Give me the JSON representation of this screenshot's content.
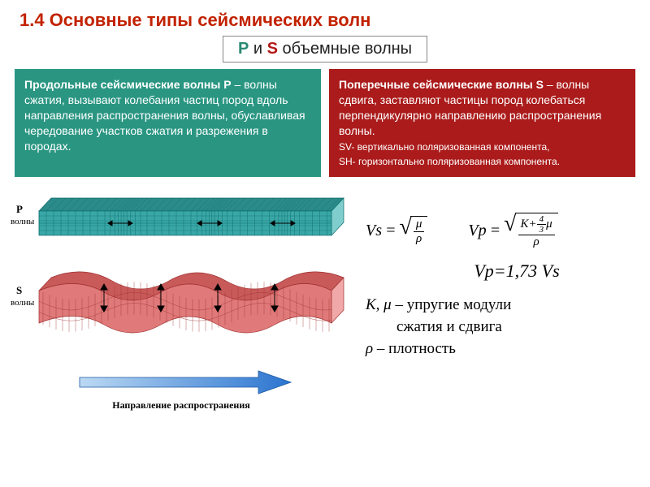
{
  "title": "1.4 Основные типы сейсмических волн",
  "subtitle": {
    "p": "P",
    "and": " и ",
    "s": "S",
    "rest": " объемные волны"
  },
  "box_green": {
    "bg_color": "#2a9682",
    "lead": "Продольные сейсмические волны P",
    "body": " – волны сжатия, вызывают колебания частиц пород вдоль направления распространения волны, обуславливая чередование участков сжатия и разрежения в породах."
  },
  "box_red": {
    "bg_color": "#ab1b1b",
    "lead": "Поперечные сейсмические волны S",
    "body": " – волны сдвига, заставляют частицы пород колебаться перпендикулярно направлению распространения волны.",
    "small1": "SV- вертикально поляризованная компонента,",
    "small2": "SH- горизонтально поляризованная компонента."
  },
  "diagram": {
    "p_label": "P",
    "s_label": "S",
    "wave_word": "волны",
    "direction_label": "Направление распространения",
    "p_block": {
      "fill": "#3aa7a7",
      "grid": "#0d6b6b",
      "side_fill": "#7fcdcd",
      "top_fill": "#2b8a8a"
    },
    "s_block": {
      "fill": "#e07a7a",
      "grid": "#a03030",
      "side_fill": "#f0a8a8",
      "top_fill": "#c85a5a"
    },
    "arrow_color": "#2a74d0",
    "compression_lines": [
      140,
      250,
      340
    ]
  },
  "formulas": {
    "vs_label": "Vs",
    "vp_label": "Vp",
    "eq": "=",
    "mu": "μ",
    "rho": "ρ",
    "K": "K",
    "four_thirds_num": "4",
    "four_thirds_den": "3",
    "plus": "+",
    "vp173": "Vp=1,73 Vs",
    "note1_vars": "K, μ",
    "note1_dash": " – ",
    "note1_rest": "упругие модули",
    "note1_line2": "сжатия и сдвига",
    "note2_var": "ρ",
    "note2_rest": " – плотность"
  }
}
